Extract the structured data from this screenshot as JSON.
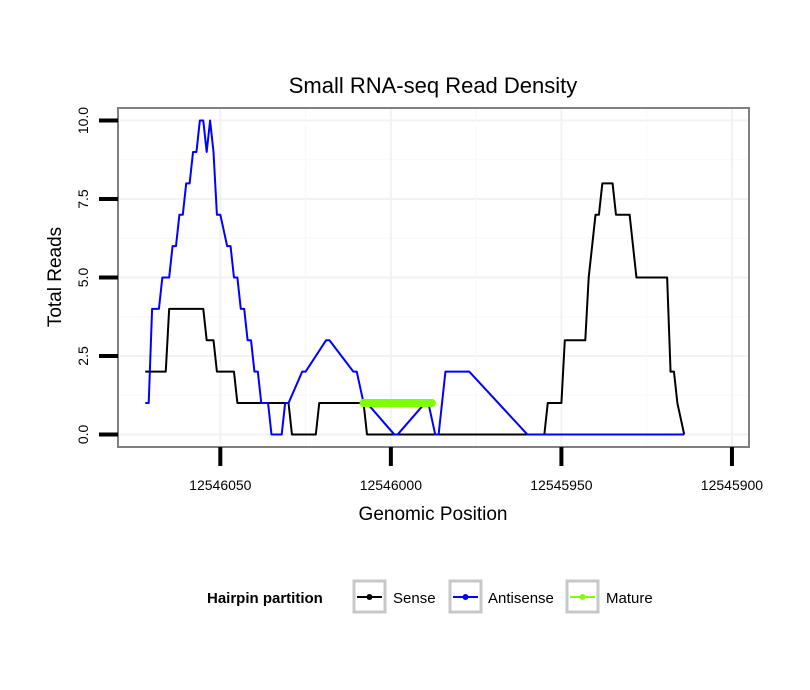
{
  "chart_data": {
    "type": "line",
    "title": "Small RNA-seq Read Density",
    "xlabel": "Genomic Position",
    "ylabel": "Total Reads",
    "x_reversed": true,
    "xlim": [
      12546080,
      12545895
    ],
    "ylim": [
      -0.4,
      10.4
    ],
    "x_ticks": [
      12546050,
      12546000,
      12545950,
      12545900
    ],
    "x_tick_labels": [
      "12546050",
      "12546000",
      "12545950",
      "12545900"
    ],
    "y_ticks": [
      0,
      2.5,
      5,
      7.5,
      10
    ],
    "y_tick_labels": [
      "0.0",
      "2.5",
      "5.0",
      "7.5",
      "10.0"
    ],
    "grid": true,
    "legend": {
      "title": "Hairpin partition",
      "position": "bottom",
      "entries": [
        {
          "name": "Sense",
          "color": "#000000"
        },
        {
          "name": "Antisense",
          "color": "#0000ff"
        },
        {
          "name": "Mature",
          "color": "#7fff00"
        }
      ]
    },
    "series": [
      {
        "name": "Sense",
        "color": "#000000",
        "x": [
          12546072,
          12546066,
          12546065,
          12546055,
          12546054,
          12546052,
          12546051,
          12546046,
          12546045,
          12546030,
          12546029,
          12546022,
          12546021,
          12546008,
          12546007,
          12545988,
          12545987,
          12545960,
          12545959,
          12545955,
          12545954,
          12545950,
          12545949,
          12545943,
          12545942,
          12545941,
          12545940,
          12545939,
          12545938,
          12545935,
          12545934,
          12545930,
          12545929,
          12545928,
          12545927,
          12545925,
          12545924,
          12545919,
          12545918,
          12545917,
          12545916,
          12545914
        ],
        "values": [
          2,
          2,
          4,
          4,
          3,
          3,
          2,
          2,
          1,
          1,
          0,
          0,
          1,
          1,
          0,
          0,
          0,
          0,
          0,
          0,
          1,
          1,
          3,
          3,
          5,
          6,
          7,
          7,
          8,
          8,
          7,
          7,
          6,
          5,
          5,
          5,
          5,
          5,
          2,
          2,
          1,
          0
        ]
      },
      {
        "name": "Antisense",
        "color": "#0000ff",
        "x": [
          12546072,
          12546071,
          12546070,
          12546068,
          12546067,
          12546065,
          12546064,
          12546063,
          12546062,
          12546061,
          12546060,
          12546059,
          12546058,
          12546057,
          12546056,
          12546055,
          12546054,
          12546053,
          12546052,
          12546051,
          12546050,
          12546048,
          12546047,
          12546046,
          12546045,
          12546044,
          12546043,
          12546042,
          12546041,
          12546040,
          12546039,
          12546038,
          12546036,
          12546035,
          12546034,
          12546032,
          12546031,
          12546030,
          12546026,
          12546025,
          12546019,
          12546018,
          12546011,
          12546010,
          12546008,
          12546007,
          12545999,
          12545998,
          12545990,
          12545989,
          12545987,
          12545986,
          12545984,
          12545983,
          12545982,
          12545981,
          12545980,
          12545979,
          12545978,
          12545977,
          12545960,
          12545959,
          12545940,
          12545914
        ],
        "values": [
          1,
          1,
          4,
          4,
          5,
          5,
          6,
          6,
          7,
          7,
          8,
          8,
          9,
          9,
          10,
          10,
          9,
          10,
          9,
          7,
          7,
          6,
          6,
          5,
          5,
          4,
          4,
          3,
          3,
          2,
          2,
          1,
          1,
          0,
          0,
          0,
          1,
          1,
          2,
          2,
          3,
          3,
          2,
          2,
          1,
          1,
          0,
          0,
          1,
          1,
          0,
          0,
          2,
          2,
          2,
          2,
          2,
          2,
          2,
          2,
          0,
          0,
          0,
          0
        ]
      },
      {
        "name": "Mature",
        "color": "#7fff00",
        "x": [
          12546008,
          12546006,
          12546004,
          12546002,
          12546000,
          12545998,
          12545996,
          12545994,
          12545992,
          12545990,
          12545988
        ],
        "values": [
          1,
          1,
          1,
          1,
          1,
          1,
          1,
          1,
          1,
          1,
          1
        ]
      }
    ]
  }
}
